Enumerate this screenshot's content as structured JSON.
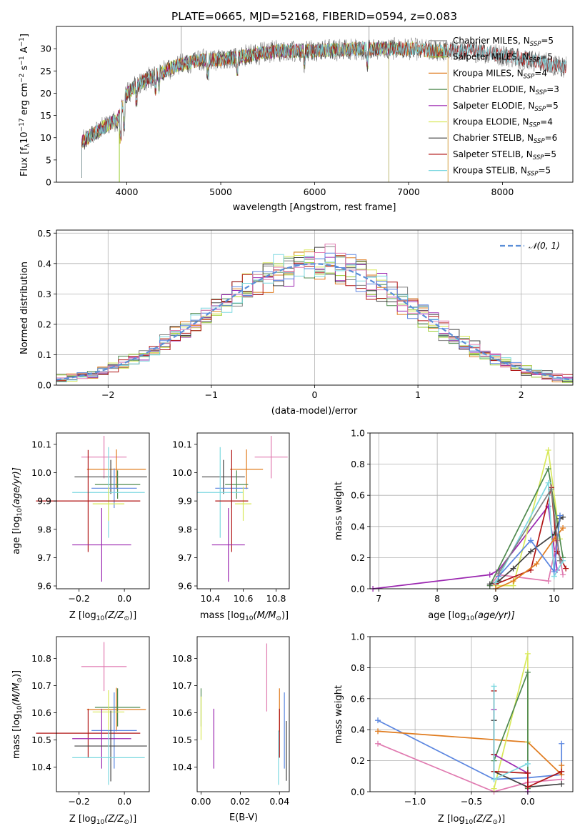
{
  "colors": {
    "Chabrier MILES": "#808080",
    "Salpeter MILES": "#9acd32",
    "Kroupa MILES": "#e07b1e",
    "Chabrier ELODIE": "#4f8a4f",
    "Salpeter ELODIE": "#9b27b0",
    "Kroupa ELODIE": "#d8e85a",
    "Chabrier STELIB": "#404040",
    "Salpeter STELIB": "#b01515",
    "Kroupa STELIB": "#7dd8e0",
    "blue": "#5b86e0",
    "pink": "#e07ab0",
    "normal": "#5b8fd8"
  },
  "chart_data": [
    {
      "id": "spectrum",
      "type": "line",
      "title": "PLATE=0665, MJD=52168, FIBERID=0594, z=0.083",
      "xlabel": "wavelength [Angstrom, rest frame]",
      "ylabel": "Flux [f",
      "ylabel_sub": "λ",
      "ylabel_mid": "10",
      "ylabel_sup1": "−17",
      "ylabel_end": " erg cm",
      "ylabel_sup2": "−2",
      "ylabel_end2": " s",
      "ylabel_sup3": "−1",
      "ylabel_end3": " A",
      "ylabel_sup4": "−1",
      "ylabel_end4": "]",
      "xlim": [
        3250,
        8750
      ],
      "ylim": [
        0,
        35
      ],
      "xticks": [
        4000,
        5000,
        6000,
        7000,
        8000
      ],
      "yticks": [
        0,
        5,
        10,
        15,
        20,
        25,
        30
      ],
      "xticklabels": [
        "4000",
        "5000",
        "6000",
        "7000",
        "8000"
      ],
      "yticklabels": [
        "0",
        "5",
        "10",
        "15",
        "20",
        "25",
        "30"
      ],
      "continuum": [
        [
          3520,
          9
        ],
        [
          3650,
          11
        ],
        [
          3800,
          13
        ],
        [
          3900,
          14
        ],
        [
          4000,
          20
        ],
        [
          4200,
          23
        ],
        [
          4500,
          26
        ],
        [
          4800,
          27.5
        ],
        [
          5000,
          27.5
        ],
        [
          5300,
          28.5
        ],
        [
          5600,
          29.5
        ],
        [
          6000,
          29.5
        ],
        [
          6500,
          30
        ],
        [
          7000,
          30
        ],
        [
          7300,
          29.5
        ],
        [
          7700,
          29.5
        ],
        [
          8000,
          28.5
        ],
        [
          8300,
          27.5
        ],
        [
          8600,
          26
        ]
      ],
      "legend_pos": "top-right",
      "series": [
        {
          "label": "Chabrier MILES, N",
          "sub": "SSP",
          "count": "=5",
          "key": "Chabrier MILES",
          "xmax": 8680
        },
        {
          "label": "Salpeter MILES, N",
          "sub": "SSP",
          "count": "=5",
          "key": "Salpeter MILES",
          "xmax": 7420
        },
        {
          "label": "Kroupa MILES, N",
          "sub": "SSP",
          "count": "=4",
          "key": "Kroupa MILES",
          "xmax": 7420
        },
        {
          "label": "Chabrier ELODIE, N",
          "sub": "SSP",
          "count": "=3",
          "key": "Chabrier ELODIE",
          "xmax": 6790
        },
        {
          "label": "Salpeter ELODIE, N",
          "sub": "SSP",
          "count": "=5",
          "key": "Salpeter ELODIE",
          "xmax": 6790
        },
        {
          "label": "Kroupa ELODIE, N",
          "sub": "SSP",
          "count": "=4",
          "key": "Kroupa ELODIE",
          "xmax": 6790
        },
        {
          "label": "Chabrier STELIB, N",
          "sub": "SSP",
          "count": "=6",
          "key": "Chabrier STELIB",
          "xmax": 8680
        },
        {
          "label": "Salpeter STELIB, N",
          "sub": "SSP",
          "count": "=5",
          "key": "Salpeter STELIB",
          "xmax": 8680
        },
        {
          "label": "Kroupa STELIB, N",
          "sub": "SSP",
          "count": "=5",
          "key": "Kroupa STELIB",
          "xmax": 8680
        }
      ]
    },
    {
      "id": "residuals",
      "type": "bar",
      "xlabel": "(data-model)/error",
      "ylabel": "Normed distribution",
      "xlim": [
        -2.5,
        2.5
      ],
      "ylim": [
        0,
        0.51
      ],
      "xticks": [
        -2,
        -1,
        0,
        1,
        2
      ],
      "yticks": [
        0.0,
        0.1,
        0.2,
        0.3,
        0.4,
        0.5
      ],
      "xticklabels": [
        "−2",
        "−1",
        "0",
        "1",
        "2"
      ],
      "yticklabels": [
        "0.0",
        "0.1",
        "0.2",
        "0.3",
        "0.4",
        "0.5"
      ],
      "bin_width": 0.1,
      "grid": true,
      "legend_label": "𝒩(0, 1)",
      "legend_pos": "top-right",
      "series_keys": [
        "Chabrier MILES",
        "Salpeter MILES",
        "Kroupa MILES",
        "Chabrier ELODIE",
        "Salpeter ELODIE",
        "Kroupa ELODIE",
        "Chabrier STELIB",
        "Salpeter STELIB",
        "Kroupa STELIB",
        "blue",
        "pink"
      ]
    },
    {
      "id": "age-vs-Z",
      "type": "scatter",
      "xlabel": "Z [log",
      "xlabel_sub": "10",
      "xlabel_end": "(Z/Z",
      "xlabel_sub2": "⊙",
      "xlabel_end2": ")]",
      "ylabel": "age  [log",
      "ylabel_sub": "10",
      "ylabel_end": "(age/yr)]",
      "xlim": [
        -0.3,
        0.11
      ],
      "ylim": [
        9.59,
        10.14
      ],
      "xticks": [
        -0.2,
        0.0
      ],
      "yticks": [
        9.6,
        9.7,
        9.8,
        9.9,
        10.0,
        10.1
      ],
      "xticklabels": [
        "−0.2",
        "0.0"
      ],
      "yticklabels": [
        "9.6",
        "9.7",
        "9.8",
        "9.9",
        "10.0",
        "10.1"
      ],
      "points": [
        {
          "c": "pink",
          "x": -0.09,
          "xe": 0.1,
          "y": 10.055,
          "ye": 0.075
        },
        {
          "c": "Kroupa MILES",
          "x": -0.035,
          "xe": 0.13,
          "y": 10.012,
          "ye": 0.07
        },
        {
          "c": "Chabrier STELIB",
          "x": -0.06,
          "xe": 0.16,
          "y": 9.985,
          "ye": 0.06
        },
        {
          "c": "Chabrier ELODIE",
          "x": -0.03,
          "xe": 0.1,
          "y": 9.958,
          "ye": 0.05
        },
        {
          "c": "blue",
          "x": -0.045,
          "xe": 0.1,
          "y": 9.945,
          "ye": 0.07
        },
        {
          "c": "Kroupa STELIB",
          "x": -0.07,
          "xe": 0.16,
          "y": 9.93,
          "ye": 0.16
        },
        {
          "c": "Kroupa ELODIE",
          "x": -0.07,
          "xe": 0.07,
          "y": 9.89,
          "ye": 0.06
        },
        {
          "c": "Salpeter STELIB",
          "x": -0.16,
          "xe": 0.23,
          "y": 9.9,
          "ye": 0.18
        },
        {
          "c": "Salpeter ELODIE",
          "x": -0.1,
          "xe": 0.13,
          "y": 9.745,
          "ye": 0.13
        }
      ]
    },
    {
      "id": "age-vs-mass",
      "type": "scatter",
      "xlabel": "mass [log",
      "xlabel_sub": "10",
      "xlabel_end": "(M/M",
      "xlabel_sub2": "⊙",
      "xlabel_end2": ")]",
      "xlim": [
        10.32,
        10.88
      ],
      "ylim": [
        9.59,
        10.14
      ],
      "xticks": [
        10.4,
        10.6,
        10.8
      ],
      "yticks": [
        9.6,
        9.7,
        9.8,
        9.9,
        10.0,
        10.1
      ],
      "xticklabels": [
        "10.4",
        "10.6",
        "10.8"
      ],
      "yticklabels": [
        "9.6",
        "9.7",
        "9.8",
        "9.9",
        "10.0",
        "10.1"
      ],
      "points": [
        {
          "c": "pink",
          "x": 10.77,
          "xe": 0.1,
          "y": 10.055,
          "ye": 0.075
        },
        {
          "c": "Kroupa MILES",
          "x": 10.62,
          "xe": 0.1,
          "y": 10.012,
          "ye": 0.07
        },
        {
          "c": "Chabrier STELIB",
          "x": 10.48,
          "xe": 0.13,
          "y": 9.985,
          "ye": 0.06
        },
        {
          "c": "Chabrier ELODIE",
          "x": 10.56,
          "xe": 0.07,
          "y": 9.958,
          "ye": 0.05
        },
        {
          "c": "blue",
          "x": 10.53,
          "xe": 0.1,
          "y": 9.945,
          "ye": 0.07
        },
        {
          "c": "Kroupa STELIB",
          "x": 10.46,
          "xe": 0.14,
          "y": 9.93,
          "ye": 0.16
        },
        {
          "c": "Kroupa ELODIE",
          "x": 10.6,
          "xe": 0.05,
          "y": 9.89,
          "ye": 0.06
        },
        {
          "c": "Salpeter STELIB",
          "x": 10.53,
          "xe": 0.1,
          "y": 9.9,
          "ye": 0.18
        },
        {
          "c": "Salpeter ELODIE",
          "x": 10.51,
          "xe": 0.1,
          "y": 9.745,
          "ye": 0.13
        }
      ]
    },
    {
      "id": "weight-vs-age",
      "type": "line",
      "xlabel": "age  [log",
      "xlabel_sub": "10",
      "xlabel_end": "(age/yr)]",
      "ylabel": "mass weight",
      "xlim": [
        6.85,
        10.32
      ],
      "ylim": [
        0,
        1.0
      ],
      "xticks": [
        7,
        8,
        9,
        10
      ],
      "yticks": [
        0.0,
        0.2,
        0.4,
        0.6,
        0.8,
        1.0
      ],
      "xticklabels": [
        "7",
        "8",
        "9",
        "10"
      ],
      "yticklabels": [
        "0.0",
        "0.2",
        "0.4",
        "0.6",
        "0.8",
        "1.0"
      ],
      "grid": true,
      "series": [
        {
          "c": "Salpeter ELODIE",
          "x": [
            6.9,
            8.9,
            9.05,
            9.9,
            10.05
          ],
          "y": [
            0.0,
            0.09,
            0.12,
            0.53,
            0.12
          ]
        },
        {
          "c": "pink",
          "x": [
            8.9,
            9.05,
            9.9,
            10.05,
            10.15
          ],
          "y": [
            0.02,
            0.09,
            0.05,
            0.31,
            0.09
          ]
        },
        {
          "c": "Kroupa ELODIE",
          "x": [
            9.0,
            9.3,
            9.9,
            10.1
          ],
          "y": [
            0.02,
            0.02,
            0.89,
            0.32
          ]
        },
        {
          "c": "Chabrier ELODIE",
          "x": [
            8.9,
            9.9,
            10.15
          ],
          "y": [
            0.02,
            0.77,
            0.2
          ]
        },
        {
          "c": "Salpeter STELIB",
          "x": [
            9.0,
            9.6,
            9.95,
            10.05,
            10.2
          ],
          "y": [
            0.03,
            0.12,
            0.65,
            0.24,
            0.13
          ]
        },
        {
          "c": "Chabrier STELIB",
          "x": [
            8.9,
            9.05,
            9.3,
            9.6,
            10.0,
            10.1,
            10.15
          ],
          "y": [
            0.03,
            0.05,
            0.13,
            0.24,
            0.35,
            0.45,
            0.46
          ]
        },
        {
          "c": "Kroupa STELIB",
          "x": [
            9.0,
            9.9,
            10.0,
            10.15
          ],
          "y": [
            0.04,
            0.68,
            0.08,
            0.18
          ]
        },
        {
          "c": "Kroupa MILES",
          "x": [
            9.0,
            9.3,
            9.7,
            10.0,
            10.15
          ],
          "y": [
            0.0,
            0.05,
            0.16,
            0.32,
            0.39
          ]
        },
        {
          "c": "blue",
          "x": [
            9.05,
            9.6,
            10.0,
            10.1
          ],
          "y": [
            0.08,
            0.31,
            0.11,
            0.47
          ]
        },
        {
          "c": "Chabrier MILES",
          "x": [
            9.05,
            9.95,
            10.1
          ],
          "y": [
            0.1,
            0.64,
            0.18
          ]
        }
      ]
    },
    {
      "id": "mass-vs-Z",
      "type": "scatter",
      "xlabel": "Z [log",
      "xlabel_sub": "10",
      "xlabel_end": "(Z/Z",
      "xlabel_sub2": "⊙",
      "xlabel_end2": ")]",
      "ylabel": "mass [log",
      "ylabel_sub": "10",
      "ylabel_end": "(M/M",
      "ylabel_sub2": "⊙",
      "ylabel_end2": ")]",
      "xlim": [
        -0.3,
        0.11
      ],
      "ylim": [
        10.31,
        10.88
      ],
      "xticks": [
        -0.2,
        0.0
      ],
      "yticks": [
        10.4,
        10.5,
        10.6,
        10.7,
        10.8
      ],
      "xticklabels": [
        "−0.2",
        "0.0"
      ],
      "yticklabels": [
        "10.4",
        "10.5",
        "10.6",
        "10.7",
        "10.8"
      ],
      "points": [
        {
          "c": "pink",
          "x": -0.09,
          "xe": 0.1,
          "y": 10.77,
          "ye": 0.09
        },
        {
          "c": "Kroupa MILES",
          "x": -0.035,
          "xe": 0.13,
          "y": 10.612,
          "ye": 0.08
        },
        {
          "c": "Chabrier ELODIE",
          "x": -0.03,
          "xe": 0.1,
          "y": 10.62,
          "ye": 0.07
        },
        {
          "c": "Kroupa ELODIE",
          "x": -0.07,
          "xe": 0.07,
          "y": 10.603,
          "ye": 0.08
        },
        {
          "c": "blue",
          "x": -0.045,
          "xe": 0.1,
          "y": 10.535,
          "ye": 0.14
        },
        {
          "c": "Salpeter STELIB",
          "x": -0.16,
          "xe": 0.23,
          "y": 10.525,
          "ye": 0.09
        },
        {
          "c": "Salpeter ELODIE",
          "x": -0.1,
          "xe": 0.13,
          "y": 10.505,
          "ye": 0.11
        },
        {
          "c": "Chabrier STELIB",
          "x": -0.06,
          "xe": 0.16,
          "y": 10.478,
          "ye": 0.13
        },
        {
          "c": "Kroupa STELIB",
          "x": -0.07,
          "xe": 0.16,
          "y": 10.435,
          "ye": 0.1
        }
      ]
    },
    {
      "id": "mass-vs-EBV",
      "type": "scatter",
      "xlabel": "E(B-V)",
      "xlim": [
        -0.002,
        0.045
      ],
      "ylim": [
        10.31,
        10.88
      ],
      "xticks": [
        0.0,
        0.02,
        0.04
      ],
      "yticks": [
        10.4,
        10.5,
        10.6,
        10.7,
        10.8
      ],
      "xticklabels": [
        "0.00",
        "0.02",
        "0.04"
      ],
      "yticklabels": [
        "10.4",
        "10.5",
        "10.6",
        "10.7",
        "10.8"
      ],
      "points": [
        {
          "c": "Chabrier ELODIE",
          "x": 0.0,
          "y": 10.62,
          "ye": 0.07
        },
        {
          "c": "Kroupa ELODIE",
          "x": 0.0,
          "y": 10.58,
          "ye": 0.08
        },
        {
          "c": "Salpeter ELODIE",
          "x": 0.0065,
          "y": 10.505,
          "ye": 0.11
        },
        {
          "c": "pink",
          "x": 0.0335,
          "y": 10.73,
          "ye": 0.125
        },
        {
          "c": "Kroupa MILES",
          "x": 0.04,
          "y": 10.61,
          "ye": 0.08
        },
        {
          "c": "Salpeter STELIB",
          "x": 0.04,
          "y": 10.525,
          "ye": 0.09
        },
        {
          "c": "Kroupa STELIB",
          "x": 0.0395,
          "y": 10.435,
          "ye": 0.1
        },
        {
          "c": "blue",
          "x": 0.0425,
          "y": 10.535,
          "ye": 0.14
        },
        {
          "c": "Chabrier STELIB",
          "x": 0.0435,
          "y": 10.46,
          "ye": 0.11
        }
      ]
    },
    {
      "id": "weight-vs-Z",
      "type": "line",
      "xlabel": "Z [log",
      "xlabel_sub": "10",
      "xlabel_end": "(Z/Z",
      "xlabel_sub2": "⊙",
      "xlabel_end2": ")]",
      "ylabel": "mass weight",
      "xlim": [
        -1.4,
        0.4
      ],
      "ylim": [
        0,
        1.0
      ],
      "xticks": [
        -1.0,
        -0.5,
        0.0
      ],
      "yticks": [
        0.0,
        0.2,
        0.4,
        0.6,
        0.8,
        1.0
      ],
      "xticklabels": [
        "−1.0",
        "−0.5",
        "0.0"
      ],
      "yticklabels": [
        "0.0",
        "0.2",
        "0.4",
        "0.6",
        "0.8",
        "1.0"
      ],
      "grid": true,
      "series": [
        {
          "c": "blue",
          "x": [
            -1.33,
            -0.3,
            0.0,
            0.3,
            0.3
          ],
          "y": [
            0.46,
            0.08,
            0.09,
            0.11,
            0.31
          ]
        },
        {
          "c": "Kroupa MILES",
          "x": [
            -1.33,
            0.0,
            0.3,
            0.3
          ],
          "y": [
            0.39,
            0.32,
            0.11,
            0.17
          ]
        },
        {
          "c": "pink",
          "x": [
            -1.33,
            -0.3,
            0.0,
            0.3
          ],
          "y": [
            0.31,
            0.0,
            0.06,
            0.08
          ]
        },
        {
          "c": "Kroupa ELODIE",
          "x": [
            -0.3,
            -0.3,
            0.0,
            0.0
          ],
          "y": [
            0.02,
            0.02,
            0.89,
            0.32
          ]
        },
        {
          "c": "Chabrier ELODIE",
          "x": [
            -0.3,
            0.0,
            0.0
          ],
          "y": [
            0.2,
            0.77,
            0.02
          ]
        },
        {
          "c": "Salpeter ELODIE",
          "x": [
            -0.3,
            -0.3,
            0.0,
            0.0
          ],
          "y": [
            0.53,
            0.24,
            0.12,
            0.0
          ]
        },
        {
          "c": "Chabrier STELIB",
          "x": [
            -0.3,
            -0.3,
            -0.3,
            0.0,
            0.3
          ],
          "y": [
            0.46,
            0.24,
            0.13,
            0.03,
            0.05
          ]
        },
        {
          "c": "Salpeter STELIB",
          "x": [
            -0.3,
            -0.3,
            -0.3,
            0.0,
            0.0,
            0.3
          ],
          "y": [
            0.65,
            0.24,
            0.13,
            0.12,
            0.03,
            0.13
          ]
        },
        {
          "c": "Kroupa STELIB",
          "x": [
            -0.3,
            -0.3,
            0.0
          ],
          "y": [
            0.68,
            0.08,
            0.18
          ]
        }
      ]
    }
  ]
}
